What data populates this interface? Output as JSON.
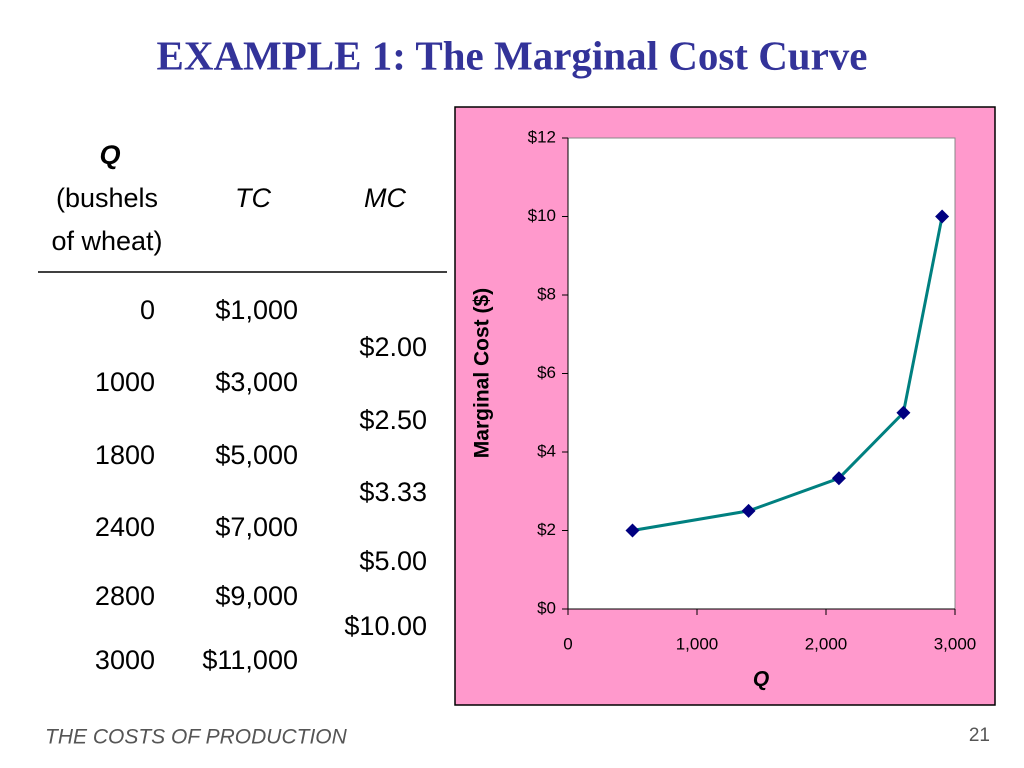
{
  "title": "EXAMPLE 1:  The Marginal Cost Curve",
  "table": {
    "header": {
      "q": [
        "Q",
        "(bushels",
        "of wheat)"
      ],
      "tc": "TC",
      "mc": "MC"
    },
    "rows": [
      [
        "0",
        "$1,000"
      ],
      [
        "1000",
        "$3,000"
      ],
      [
        "1800",
        "$5,000"
      ],
      [
        "2400",
        "$7,000"
      ],
      [
        "2800",
        "$9,000"
      ],
      [
        "3000",
        "$11,000"
      ]
    ],
    "mc": [
      "$2.00",
      "$2.50",
      "$3.33",
      "$5.00",
      "$10.00"
    ]
  },
  "chart_data": {
    "type": "line",
    "x_label": "Q",
    "y_label": "Marginal Cost ($)",
    "x": [
      500,
      1400,
      2100,
      2600,
      2900
    ],
    "series": [
      {
        "color": "#008080",
        "marker_color": "#000080",
        "values": [
          2,
          2.5,
          3.33,
          5,
          10
        ]
      }
    ],
    "xlim": [
      0,
      3000
    ],
    "xticks": [
      0,
      {
        "value": 1000,
        "label": "1,000"
      },
      {
        "value": 2000,
        "label": "2,000"
      },
      {
        "value": 3000,
        "label": "3,000"
      }
    ],
    "ylim": [
      0,
      12
    ],
    "yticks": [
      {
        "value": 0,
        "label": "$0"
      },
      {
        "value": 2,
        "label": "$2"
      },
      {
        "value": 4,
        "label": "$4"
      },
      {
        "value": 6,
        "label": "$6"
      },
      {
        "value": 8,
        "label": "$8"
      },
      {
        "value": 10,
        "label": "$10"
      },
      {
        "value": 12,
        "label": "$12"
      }
    ],
    "grid": false
  },
  "footer": {
    "left": "THE COSTS OF PRODUCTION",
    "page": "21"
  }
}
